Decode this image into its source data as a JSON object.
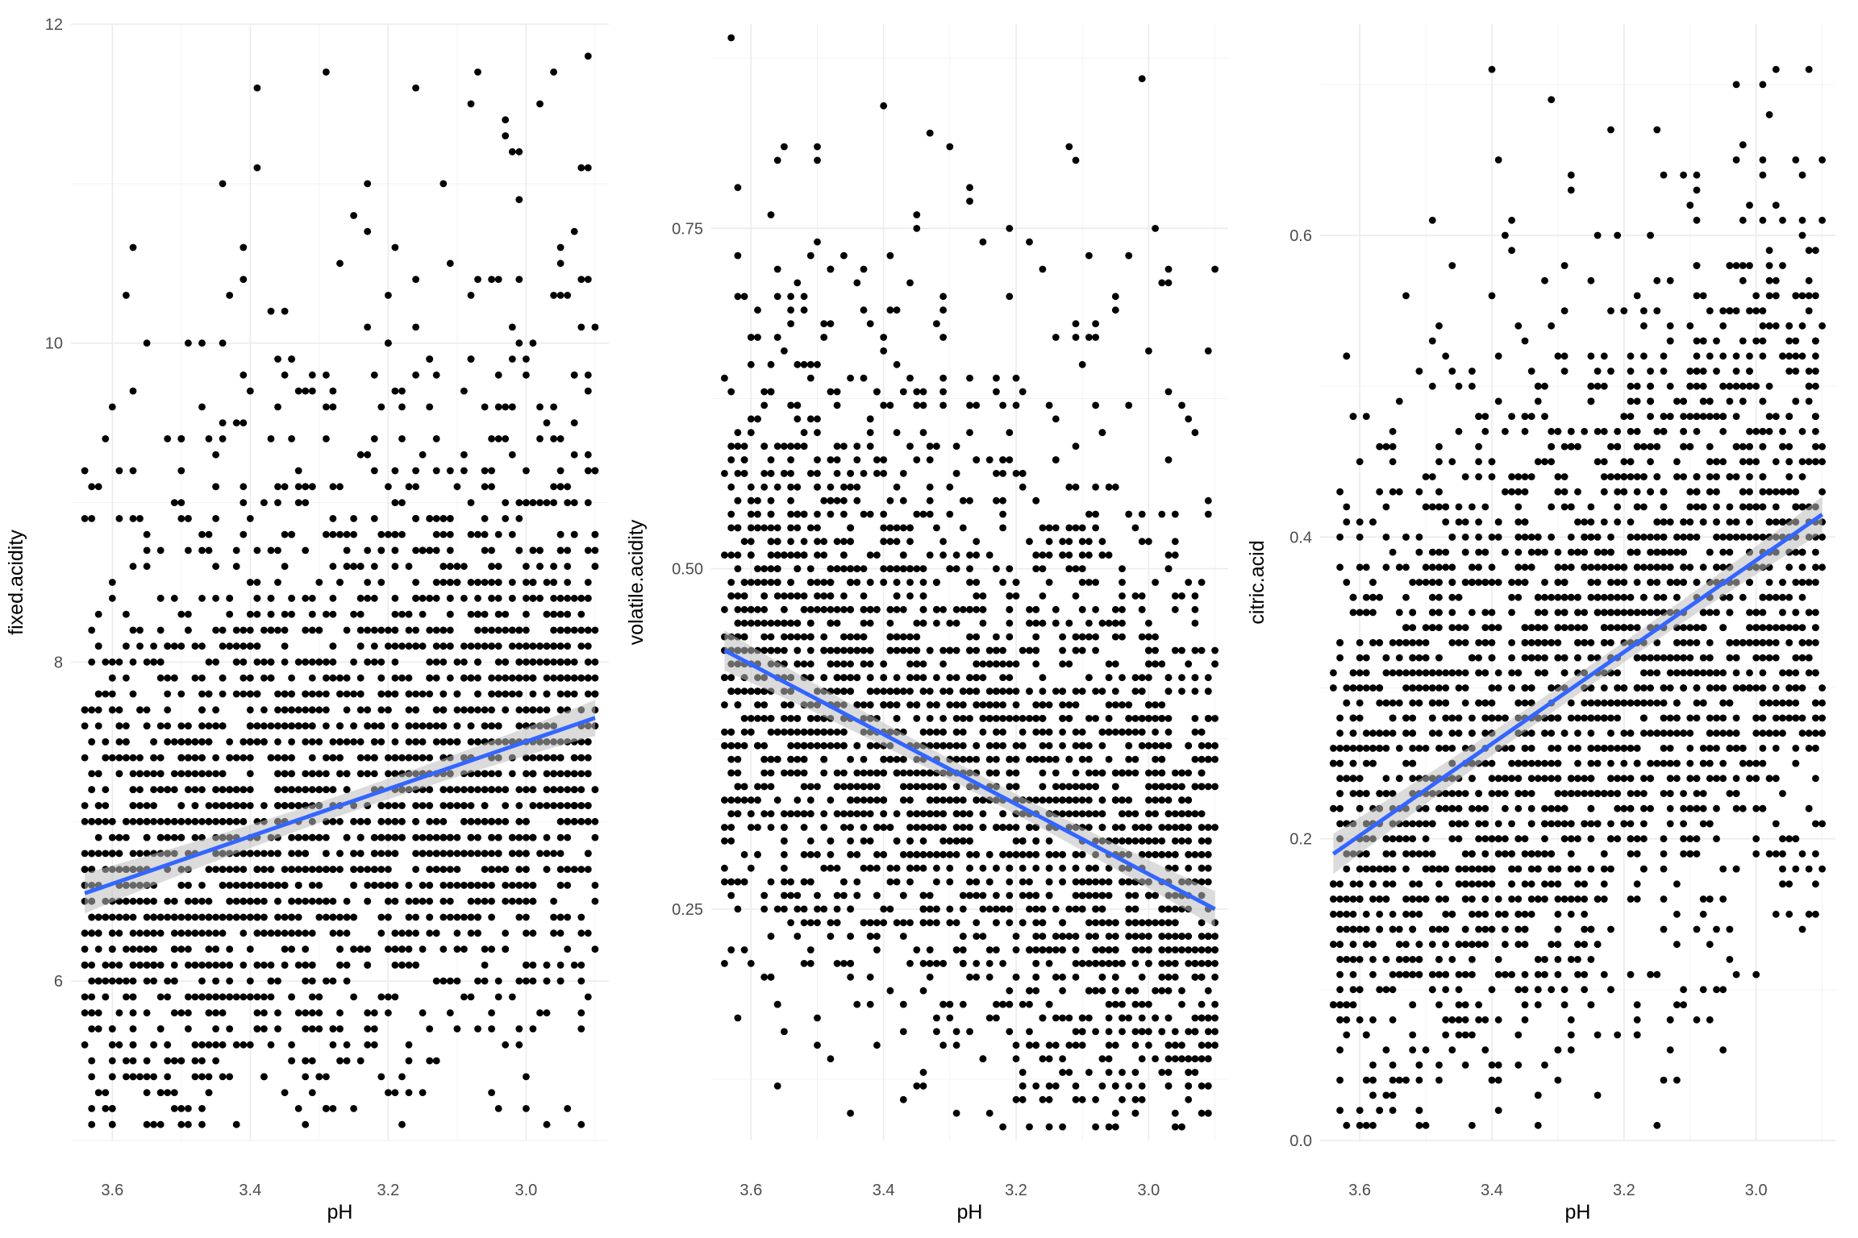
{
  "colors": {
    "points": "#000000",
    "fit_line": "#3366ff",
    "ci_band": "#bdbdbd",
    "grid": "#ebebeb"
  },
  "chart_data": [
    {
      "type": "scatter",
      "title": "",
      "xlabel": "pH",
      "ylabel": "fixed.acidity",
      "x_reversed": true,
      "xlim": [
        3.66,
        2.88
      ],
      "ylim": [
        5.0,
        12.0
      ],
      "x_ticks": [
        "3.6",
        "3.4",
        "3.2",
        "3.0"
      ],
      "y_ticks": [
        "6",
        "8",
        "10",
        "12"
      ],
      "grid": true,
      "x_range_points": [
        3.64,
        2.9
      ],
      "trend": {
        "method": "linear",
        "start": [
          3.64,
          6.55
        ],
        "end": [
          2.9,
          7.65
        ]
      },
      "points_shown": "dense cloud of several thousand observations"
    },
    {
      "type": "scatter",
      "title": "",
      "xlabel": "pH",
      "ylabel": "volatile.acidity",
      "x_reversed": true,
      "xlim": [
        3.66,
        2.88
      ],
      "ylim": [
        0.08,
        0.9
      ],
      "x_ticks": [
        "3.6",
        "3.4",
        "3.2",
        "3.0"
      ],
      "y_ticks": [
        "0.25",
        "0.50",
        "0.75"
      ],
      "grid": true,
      "x_range_points": [
        3.64,
        2.9
      ],
      "trend": {
        "method": "linear",
        "start": [
          3.64,
          0.44
        ],
        "end": [
          2.9,
          0.25
        ]
      },
      "points_shown": "dense cloud of several thousand observations"
    },
    {
      "type": "scatter",
      "title": "",
      "xlabel": "pH",
      "ylabel": "citric.acid",
      "x_reversed": true,
      "xlim": [
        3.66,
        2.88
      ],
      "ylim": [
        0.0,
        0.74
      ],
      "x_ticks": [
        "3.6",
        "3.4",
        "3.2",
        "3.0"
      ],
      "y_ticks": [
        "0.0",
        "0.2",
        "0.4",
        "0.6"
      ],
      "grid": true,
      "x_range_points": [
        3.64,
        2.9
      ],
      "trend": {
        "method": "linear",
        "start": [
          3.64,
          0.19
        ],
        "end": [
          2.9,
          0.415
        ]
      },
      "points_shown": "dense cloud of several thousand observations"
    }
  ]
}
